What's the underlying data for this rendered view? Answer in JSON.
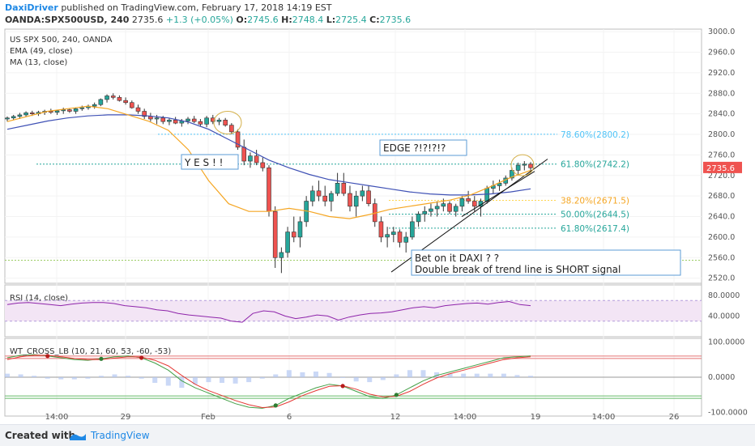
{
  "header": {
    "author": "DaxiDriver",
    "published_text": "published on TradingView.com, February 17, 2018 14:19 EST",
    "symbol": "OANDA:SPX500USD, 240",
    "last": "2735.6",
    "change": "+1.3 (+0.05%)",
    "o_label": "O:",
    "o": "2745.6",
    "h_label": "H:",
    "h": "2748.4",
    "l_label": "L:",
    "l": "2725.4",
    "c_label": "C:",
    "c": "2735.6"
  },
  "legend": {
    "title": "US SPX 500, 240, OANDA",
    "ema": "EMA (49, close)",
    "ma": "MA (13, close)",
    "rsi": "RSI (14, close)",
    "wt": "WT_CROSS_LB (10, 21, 60, 53, -60, -53)"
  },
  "annotations": {
    "yes": "Y E S ! !",
    "edge": "EDGE ?!?!?!?",
    "bet1": "Bet on it DAXI ? ?",
    "bet2": "Double break of trend line is SHORT signal"
  },
  "fib_labels": [
    "78.60%(2800.2)",
    "61.80%(2742.2)",
    "38.20%(2671.5)",
    "50.00%(2644.5)",
    "61.80%(2617.4)"
  ],
  "price_badge": "2735.6",
  "footer": {
    "created": "Created with",
    "brand": "TradingView"
  },
  "colors": {
    "up": "#26a69a",
    "down": "#ef5350",
    "ema": "#3f51b5",
    "ma": "#f5a623",
    "rsi": "#8e24aa",
    "fib": "#4fc3f7",
    "fib_green": "#26a69a"
  },
  "chart_data": [
    {
      "type": "candlestick",
      "title": "US SPX 500, 240, OANDA",
      "y_ticks": [
        "3000.0",
        "2960.0",
        "2920.0",
        "2880.0",
        "2840.0",
        "2800.0",
        "2760.0",
        "2720.0",
        "2680.0",
        "2640.0",
        "2600.0",
        "2560.0",
        "2520.0"
      ],
      "ylim": [
        2510,
        3005
      ],
      "x_ticks": [
        "14:00",
        "29",
        "Feb",
        "6",
        "12",
        "14:00",
        "19",
        "14:00",
        "26"
      ],
      "series": [
        {
          "name": "EMA (49, close)",
          "values": [
            2810,
            2818,
            2826,
            2832,
            2836,
            2838,
            2838,
            2836,
            2832,
            2824,
            2810,
            2790,
            2770,
            2750,
            2735,
            2722,
            2712,
            2706,
            2700,
            2694,
            2688,
            2684,
            2682,
            2682,
            2684,
            2688,
            2694
          ]
        },
        {
          "name": "MA (13, close)",
          "values": [
            2825,
            2835,
            2845,
            2850,
            2855,
            2850,
            2838,
            2826,
            2808,
            2770,
            2710,
            2665,
            2650,
            2650,
            2656,
            2650,
            2640,
            2636,
            2644,
            2654,
            2660,
            2666,
            2672,
            2682,
            2698,
            2716,
            2730
          ]
        }
      ],
      "candles": [
        [
          2830,
          2835,
          2825,
          2832
        ],
        [
          2832,
          2838,
          2828,
          2835
        ],
        [
          2835,
          2842,
          2830,
          2838
        ],
        [
          2838,
          2845,
          2834,
          2842
        ],
        [
          2842,
          2846,
          2836,
          2840
        ],
        [
          2840,
          2846,
          2836,
          2843
        ],
        [
          2843,
          2848,
          2838,
          2845
        ],
        [
          2845,
          2850,
          2840,
          2843
        ],
        [
          2843,
          2848,
          2838,
          2846
        ],
        [
          2846,
          2852,
          2840,
          2848
        ],
        [
          2848,
          2850,
          2842,
          2845
        ],
        [
          2845,
          2852,
          2840,
          2850
        ],
        [
          2850,
          2856,
          2846,
          2852
        ],
        [
          2852,
          2858,
          2848,
          2855
        ],
        [
          2855,
          2862,
          2850,
          2858
        ],
        [
          2858,
          2870,
          2855,
          2868
        ],
        [
          2868,
          2878,
          2862,
          2875
        ],
        [
          2875,
          2880,
          2868,
          2872
        ],
        [
          2872,
          2876,
          2864,
          2866
        ],
        [
          2866,
          2872,
          2858,
          2862
        ],
        [
          2862,
          2866,
          2850,
          2852
        ],
        [
          2852,
          2858,
          2840,
          2845
        ],
        [
          2845,
          2850,
          2830,
          2835
        ],
        [
          2835,
          2842,
          2825,
          2830
        ],
        [
          2830,
          2838,
          2820,
          2832
        ],
        [
          2832,
          2836,
          2820,
          2825
        ],
        [
          2825,
          2832,
          2818,
          2828
        ],
        [
          2828,
          2834,
          2820,
          2822
        ],
        [
          2822,
          2830,
          2815,
          2826
        ],
        [
          2826,
          2834,
          2820,
          2830
        ],
        [
          2830,
          2836,
          2822,
          2825
        ],
        [
          2825,
          2830,
          2815,
          2820
        ],
        [
          2820,
          2836,
          2814,
          2832
        ],
        [
          2832,
          2838,
          2820,
          2825
        ],
        [
          2825,
          2832,
          2818,
          2828
        ],
        [
          2828,
          2832,
          2815,
          2818
        ],
        [
          2818,
          2822,
          2800,
          2805
        ],
        [
          2805,
          2810,
          2770,
          2775
        ],
        [
          2775,
          2790,
          2740,
          2748
        ],
        [
          2748,
          2765,
          2735,
          2758
        ],
        [
          2758,
          2770,
          2740,
          2745
        ],
        [
          2745,
          2755,
          2728,
          2735
        ],
        [
          2735,
          2740,
          2640,
          2650
        ],
        [
          2650,
          2660,
          2540,
          2560
        ],
        [
          2560,
          2580,
          2530,
          2570
        ],
        [
          2570,
          2620,
          2560,
          2610
        ],
        [
          2610,
          2640,
          2590,
          2600
        ],
        [
          2600,
          2640,
          2580,
          2630
        ],
        [
          2630,
          2680,
          2620,
          2670
        ],
        [
          2670,
          2700,
          2660,
          2690
        ],
        [
          2690,
          2710,
          2670,
          2680
        ],
        [
          2680,
          2700,
          2660,
          2670
        ],
        [
          2670,
          2690,
          2650,
          2685
        ],
        [
          2685,
          2725,
          2680,
          2705
        ],
        [
          2705,
          2725,
          2680,
          2685
        ],
        [
          2685,
          2700,
          2650,
          2660
        ],
        [
          2660,
          2690,
          2640,
          2680
        ],
        [
          2680,
          2700,
          2670,
          2690
        ],
        [
          2690,
          2700,
          2660,
          2665
        ],
        [
          2665,
          2675,
          2620,
          2630
        ],
        [
          2630,
          2640,
          2590,
          2600
        ],
        [
          2600,
          2620,
          2580,
          2605
        ],
        [
          2605,
          2620,
          2590,
          2610
        ],
        [
          2610,
          2615,
          2580,
          2590
        ],
        [
          2590,
          2610,
          2570,
          2600
        ],
        [
          2600,
          2640,
          2595,
          2630
        ],
        [
          2630,
          2650,
          2620,
          2645
        ],
        [
          2645,
          2660,
          2630,
          2650
        ],
        [
          2650,
          2665,
          2640,
          2655
        ],
        [
          2655,
          2670,
          2640,
          2660
        ],
        [
          2660,
          2675,
          2650,
          2665
        ],
        [
          2665,
          2670,
          2645,
          2650
        ],
        [
          2650,
          2665,
          2640,
          2660
        ],
        [
          2660,
          2680,
          2650,
          2675
        ],
        [
          2675,
          2690,
          2665,
          2670
        ],
        [
          2670,
          2680,
          2650,
          2660
        ],
        [
          2660,
          2675,
          2640,
          2670
        ],
        [
          2670,
          2700,
          2665,
          2695
        ],
        [
          2695,
          2710,
          2685,
          2700
        ],
        [
          2700,
          2712,
          2690,
          2705
        ],
        [
          2705,
          2720,
          2700,
          2715
        ],
        [
          2715,
          2735,
          2710,
          2730
        ],
        [
          2730,
          2745,
          2720,
          2740
        ],
        [
          2740,
          2748,
          2730,
          2742
        ],
        [
          2742,
          2746,
          2726,
          2735
        ]
      ]
    },
    {
      "type": "line",
      "title": "RSI (14, close)",
      "y_ticks": [
        "80.0000",
        "40.0000"
      ],
      "ylim": [
        0,
        100
      ],
      "series": [
        {
          "name": "RSI (14, close)",
          "values": [
            62,
            65,
            66,
            64,
            62,
            60,
            63,
            65,
            66,
            66,
            64,
            60,
            58,
            56,
            52,
            50,
            45,
            42,
            40,
            38,
            36,
            30,
            28,
            45,
            50,
            48,
            40,
            35,
            38,
            42,
            40,
            32,
            38,
            42,
            45,
            46,
            48,
            52,
            56,
            58,
            56,
            60,
            62,
            64,
            65,
            63,
            66,
            68,
            62,
            60
          ]
        }
      ]
    },
    {
      "type": "line",
      "title": "WT_CROSS_LB (10, 21, 60, 53, -60, -53)",
      "y_ticks": [
        "100.0000",
        "0.0000",
        "-100.0000"
      ],
      "ylim": [
        -110,
        110
      ],
      "series": [
        {
          "name": "WT1",
          "values": [
            55,
            62,
            64,
            60,
            55,
            50,
            48,
            52,
            58,
            60,
            55,
            40,
            20,
            -10,
            -30,
            -45,
            -60,
            -75,
            -85,
            -88,
            -80,
            -60,
            -45,
            -30,
            -20,
            -25,
            -40,
            -55,
            -60,
            -50,
            -30,
            -10,
            5,
            15,
            25,
            35,
            45,
            55,
            58,
            60
          ]
        },
        {
          "name": "WT2",
          "values": [
            50,
            58,
            62,
            62,
            58,
            53,
            50,
            50,
            54,
            58,
            57,
            48,
            32,
            5,
            -20,
            -38,
            -52,
            -66,
            -78,
            -86,
            -84,
            -70,
            -52,
            -38,
            -26,
            -24,
            -34,
            -48,
            -56,
            -54,
            -40,
            -20,
            -2,
            10,
            20,
            30,
            40,
            50,
            55,
            58
          ]
        }
      ]
    }
  ]
}
